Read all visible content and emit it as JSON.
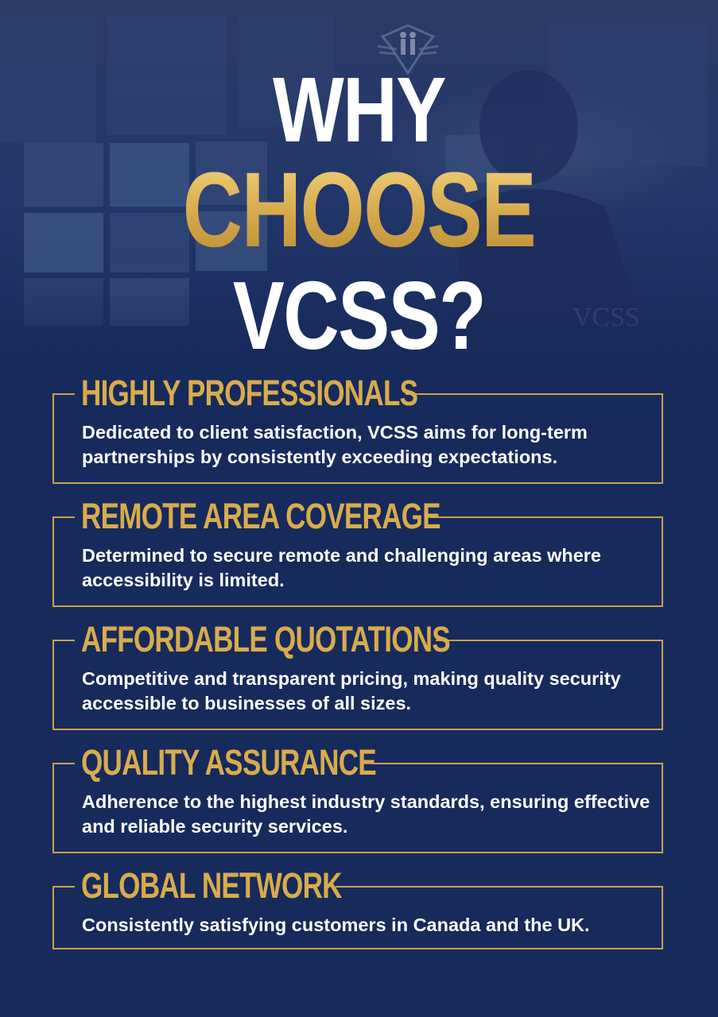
{
  "headline": {
    "line1": "WHY",
    "line2": "CHOOSE",
    "line3": "VCSS?"
  },
  "colors": {
    "background": "#172a5c",
    "gold": "#d8ac4c",
    "white": "#ffffff"
  },
  "logo": {
    "icon": "vcss-shield-logo-icon"
  },
  "features": [
    {
      "title": "HIGHLY PROFESSIONALS",
      "description": "Dedicated to client satisfaction, VCSS aims for long-term partnerships by consistently exceeding expectations."
    },
    {
      "title": "REMOTE AREA COVERAGE",
      "description": "Determined to secure remote and challenging areas where accessibility is limited."
    },
    {
      "title": "AFFORDABLE QUOTATIONS",
      "description": "Competitive and transparent pricing, making quality security accessible to businesses of all sizes."
    },
    {
      "title": "QUALITY ASSURANCE",
      "description": "Adherence to the highest industry standards, ensuring effective and reliable security services."
    },
    {
      "title": "GLOBAL NETWORK",
      "description": "Consistently satisfying customers in Canada and the UK."
    }
  ]
}
